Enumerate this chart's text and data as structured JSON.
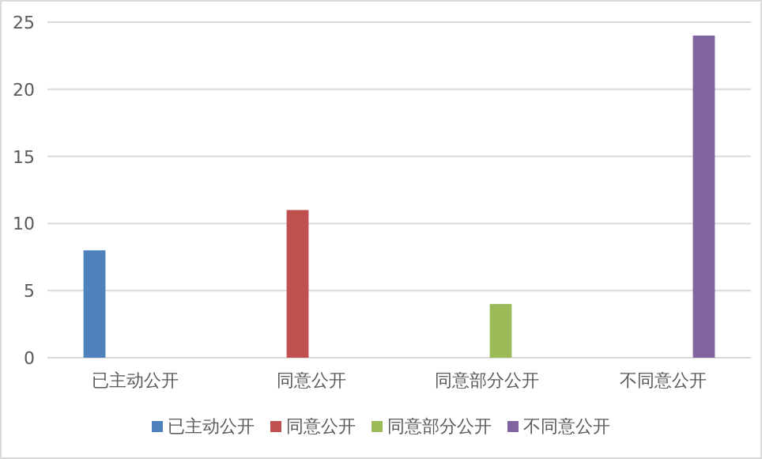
{
  "chart_data": {
    "type": "bar",
    "categories": [
      "已主动公开",
      "同意公开",
      "同意部分公开",
      "不同意公开"
    ],
    "series": [
      {
        "name": "已主动公开",
        "color": "#4f81bd",
        "values": [
          8,
          null,
          null,
          null
        ]
      },
      {
        "name": "同意公开",
        "color": "#c0504d",
        "values": [
          null,
          11,
          null,
          null
        ]
      },
      {
        "name": "同意部分公开",
        "color": "#9bbb59",
        "values": [
          null,
          null,
          4,
          null
        ]
      },
      {
        "name": "不同意公开",
        "color": "#8064a2",
        "values": [
          null,
          null,
          null,
          24
        ]
      }
    ],
    "ylim": [
      0,
      25
    ],
    "yticks": [
      0,
      5,
      10,
      15,
      20,
      25
    ],
    "grid": "y",
    "legend": "bottom"
  }
}
